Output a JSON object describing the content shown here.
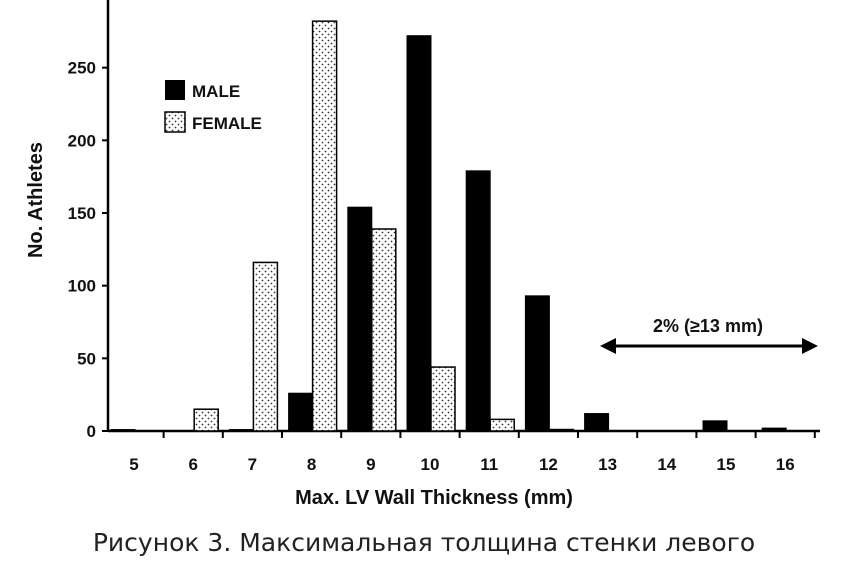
{
  "chart_data": {
    "type": "bar",
    "categories": [
      "5",
      "6",
      "7",
      "8",
      "9",
      "10",
      "11",
      "12",
      "13",
      "14",
      "15",
      "16"
    ],
    "series": [
      {
        "name": "MALE",
        "values": [
          1,
          0,
          1,
          26,
          154,
          272,
          179,
          93,
          12,
          0,
          7,
          2
        ],
        "color": "#000000"
      },
      {
        "name": "FEMALE",
        "values": [
          0,
          15,
          116,
          282,
          139,
          44,
          8,
          1,
          0,
          0,
          0,
          0
        ],
        "color": "#ffffff"
      }
    ],
    "xlabel": "Max. LV Wall Thickness (mm)",
    "ylabel": "No. Athletes",
    "ylim": [
      0,
      300
    ],
    "yticks": [
      0,
      50,
      100,
      150,
      200,
      250
    ],
    "legend_position": "top-left",
    "grid": false,
    "annotation": {
      "text": "2% (≥13 mm)",
      "from": "13",
      "to": "16"
    }
  },
  "caption": "Рисунок 3. Максимальная толщина стенки левого"
}
